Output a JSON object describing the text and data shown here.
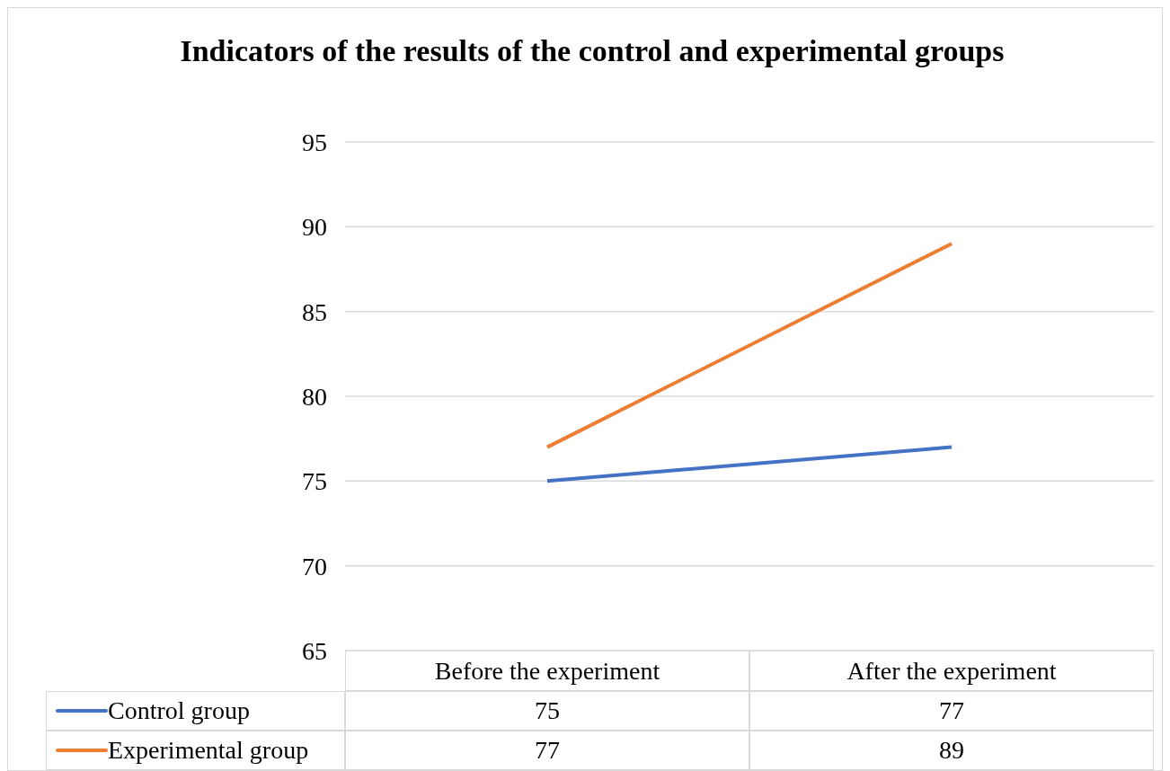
{
  "chart_data": {
    "type": "line",
    "title": "Indicators of the results of the control and experimental groups",
    "categories": [
      "Before the experiment",
      "After the experiment"
    ],
    "series": [
      {
        "name": "Control group",
        "color": "#4472c4",
        "values": [
          75,
          77
        ]
      },
      {
        "name": "Experimental group",
        "color": "#ed7d31",
        "values": [
          77,
          89
        ]
      }
    ],
    "ylim": [
      65,
      95
    ],
    "yticks": [
      65,
      70,
      75,
      80,
      85,
      90,
      95
    ],
    "grid": "y",
    "legend": "bottom",
    "data_labels": true,
    "marker": "none"
  }
}
